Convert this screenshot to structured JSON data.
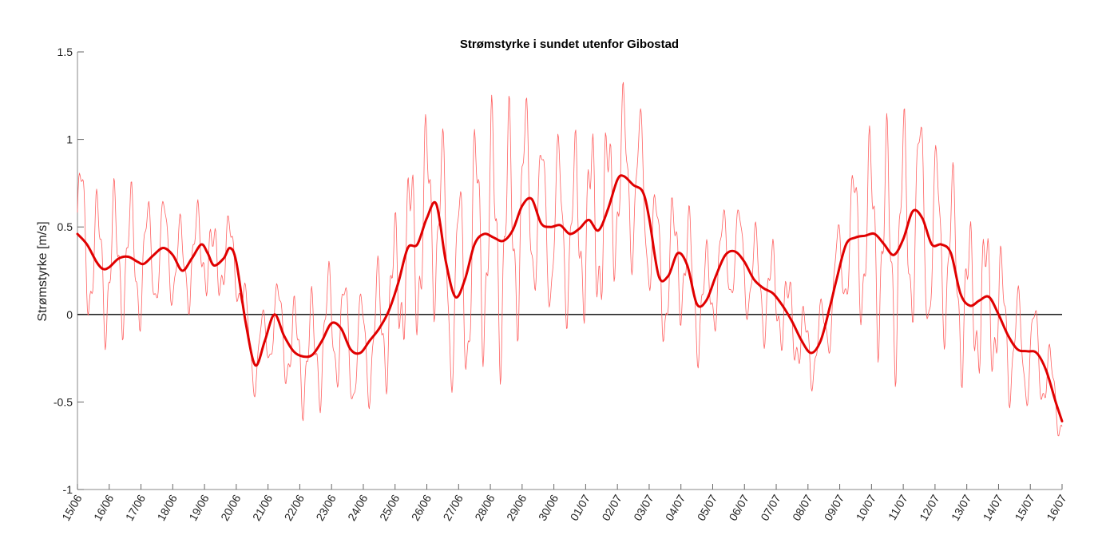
{
  "chart_data": {
    "type": "line",
    "title": "Strømstyrke i sundet utenfor Gibostad",
    "xlabel": "",
    "ylabel": "Strømstyrke [m/s]",
    "ylim": [
      -1,
      1.5
    ],
    "yticks": [
      -1,
      -0.5,
      0,
      0.5,
      1,
      1.5
    ],
    "ytick_labels": [
      "-1",
      "-0.5",
      "0",
      "0.5",
      "1",
      "1.5"
    ],
    "xlim_days": [
      0,
      31
    ],
    "xtick_labels": [
      "15/06",
      "16/06",
      "17/06",
      "18/06",
      "19/06",
      "20/06",
      "21/06",
      "22/06",
      "23/06",
      "24/06",
      "25/06",
      "26/06",
      "27/06",
      "28/06",
      "29/06",
      "30/06",
      "01/07",
      "02/07",
      "03/07",
      "04/07",
      "05/07",
      "06/07",
      "07/07",
      "08/07",
      "09/07",
      "10/07",
      "11/07",
      "12/07",
      "13/07",
      "14/07",
      "15/07",
      "16/07"
    ],
    "zero_line": true,
    "grid": false,
    "series": [
      {
        "style": "thin",
        "color": "#ff6060",
        "amp_days": [
          0,
          0.5,
          1,
          1.5,
          2,
          2.5,
          3,
          3.5,
          4,
          4.5,
          5,
          5.5,
          6,
          6.5,
          7,
          7.5,
          8,
          8.5,
          9,
          9.5,
          10,
          10.5,
          11,
          11.5,
          12,
          12.5,
          13,
          13.5,
          14,
          14.5,
          15,
          15.5,
          16,
          16.5,
          17,
          17.5,
          18,
          18.5,
          19,
          19.5,
          20,
          20.5,
          21,
          21.5,
          22,
          22.5,
          23,
          23.5,
          24,
          24.5,
          25,
          25.5,
          26,
          26.5,
          27,
          27.5,
          28,
          28.5,
          29,
          29.5,
          30,
          30.5,
          31
        ],
        "amp_values": [
          0.55,
          0.4,
          0.4,
          0.38,
          0.36,
          0.34,
          0.32,
          0.3,
          0.28,
          0.25,
          0.22,
          0.22,
          0.25,
          0.26,
          0.3,
          0.32,
          0.34,
          0.36,
          0.38,
          0.42,
          0.48,
          0.58,
          0.68,
          0.72,
          0.72,
          0.7,
          0.68,
          0.66,
          0.6,
          0.52,
          0.54,
          0.56,
          0.58,
          0.58,
          0.6,
          0.56,
          0.5,
          0.42,
          0.34,
          0.3,
          0.28,
          0.3,
          0.32,
          0.34,
          0.3,
          0.26,
          0.24,
          0.26,
          0.34,
          0.48,
          0.56,
          0.62,
          0.66,
          0.64,
          0.62,
          0.56,
          0.5,
          0.48,
          0.48,
          0.42,
          0.36,
          0.26,
          0.1
        ]
      },
      {
        "style": "thick",
        "color": "#e00000",
        "x_days": [
          0,
          0.3,
          0.6,
          0.8,
          1.0,
          1.3,
          1.6,
          1.9,
          2.1,
          2.4,
          2.7,
          3.0,
          3.3,
          3.6,
          3.9,
          4.1,
          4.3,
          4.6,
          4.8,
          5.0,
          5.3,
          5.6,
          5.9,
          6.2,
          6.5,
          6.8,
          7.1,
          7.4,
          7.7,
          8.0,
          8.3,
          8.6,
          8.9,
          9.2,
          9.5,
          9.8,
          10.1,
          10.4,
          10.7,
          11.0,
          11.3,
          11.6,
          11.9,
          12.2,
          12.5,
          12.8,
          13.1,
          13.4,
          13.7,
          14.0,
          14.3,
          14.6,
          14.9,
          15.2,
          15.5,
          15.8,
          16.1,
          16.4,
          16.7,
          17.0,
          17.2,
          17.5,
          17.8,
          18.0,
          18.3,
          18.6,
          18.9,
          19.2,
          19.5,
          19.8,
          20.1,
          20.4,
          20.7,
          21.0,
          21.3,
          21.6,
          21.9,
          22.2,
          22.5,
          22.8,
          23.1,
          23.4,
          23.7,
          23.9,
          24.2,
          24.5,
          24.8,
          25.1,
          25.4,
          25.7,
          26.0,
          26.3,
          26.6,
          26.9,
          27.2,
          27.5,
          27.8,
          28.1,
          28.4,
          28.7,
          29.0,
          29.3,
          29.6,
          29.9,
          30.2,
          30.5,
          30.8,
          31.0
        ],
        "y": [
          0.46,
          0.4,
          0.3,
          0.26,
          0.27,
          0.32,
          0.33,
          0.3,
          0.29,
          0.34,
          0.38,
          0.34,
          0.25,
          0.32,
          0.4,
          0.35,
          0.28,
          0.32,
          0.38,
          0.3,
          -0.05,
          -0.29,
          -0.15,
          0.0,
          -0.12,
          -0.21,
          -0.24,
          -0.23,
          -0.15,
          -0.05,
          -0.08,
          -0.2,
          -0.22,
          -0.15,
          -0.08,
          0.02,
          0.18,
          0.38,
          0.4,
          0.55,
          0.63,
          0.3,
          0.1,
          0.2,
          0.4,
          0.46,
          0.44,
          0.42,
          0.48,
          0.62,
          0.66,
          0.52,
          0.5,
          0.51,
          0.46,
          0.49,
          0.54,
          0.48,
          0.6,
          0.77,
          0.79,
          0.74,
          0.7,
          0.55,
          0.22,
          0.22,
          0.35,
          0.28,
          0.06,
          0.08,
          0.22,
          0.34,
          0.36,
          0.3,
          0.2,
          0.15,
          0.12,
          0.05,
          -0.04,
          -0.15,
          -0.22,
          -0.15,
          0.05,
          0.2,
          0.4,
          0.44,
          0.45,
          0.46,
          0.4,
          0.34,
          0.43,
          0.59,
          0.55,
          0.4,
          0.4,
          0.35,
          0.12,
          0.05,
          0.08,
          0.1,
          0.0,
          -0.12,
          -0.2,
          -0.21,
          -0.22,
          -0.32,
          -0.5,
          -0.61
        ]
      }
    ]
  }
}
